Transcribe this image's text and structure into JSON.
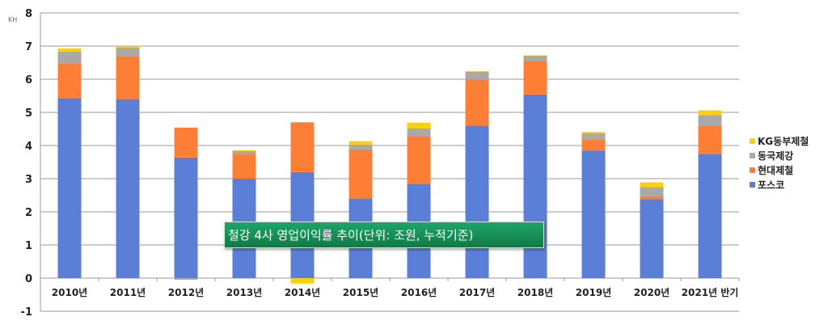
{
  "chart_data": {
    "type": "bar",
    "stacked": true,
    "title": "철강 4사 영업이익률 추이(단위: 조원, 누적기준)",
    "unit_label": "KH",
    "xlabel": "",
    "ylabel": "",
    "ylim": [
      -1,
      8
    ],
    "yticks": [
      -1,
      0,
      1,
      2,
      3,
      4,
      5,
      6,
      7,
      8
    ],
    "grid": true,
    "legend_position": "right",
    "categories": [
      "2010년",
      "2011년",
      "2012년",
      "2013년",
      "2014년",
      "2015년",
      "2016년",
      "2017년",
      "2018년",
      "2019년",
      "2020년",
      "2021년 반기"
    ],
    "series": [
      {
        "name": "포스코",
        "color": "#5b7fd6",
        "values": [
          5.43,
          5.4,
          3.64,
          3.0,
          3.2,
          2.4,
          2.84,
          4.6,
          5.54,
          3.85,
          2.38,
          3.75
        ]
      },
      {
        "name": "현대제철",
        "color": "#fd7f36",
        "values": [
          1.05,
          1.3,
          0.9,
          0.75,
          1.5,
          1.48,
          1.44,
          1.39,
          1.01,
          0.34,
          0.09,
          0.85
        ]
      },
      {
        "name": "동국제강",
        "color": "#a9a9a9",
        "values": [
          0.35,
          0.25,
          -0.05,
          0.08,
          0.0,
          0.15,
          0.24,
          0.24,
          0.16,
          0.18,
          0.28,
          0.32
        ]
      },
      {
        "name": "KG동부제철",
        "color": "#ffd000",
        "values": [
          0.1,
          0.05,
          0.0,
          0.03,
          -0.16,
          0.1,
          0.17,
          0.01,
          0.01,
          0.04,
          0.14,
          0.14
        ]
      }
    ]
  }
}
